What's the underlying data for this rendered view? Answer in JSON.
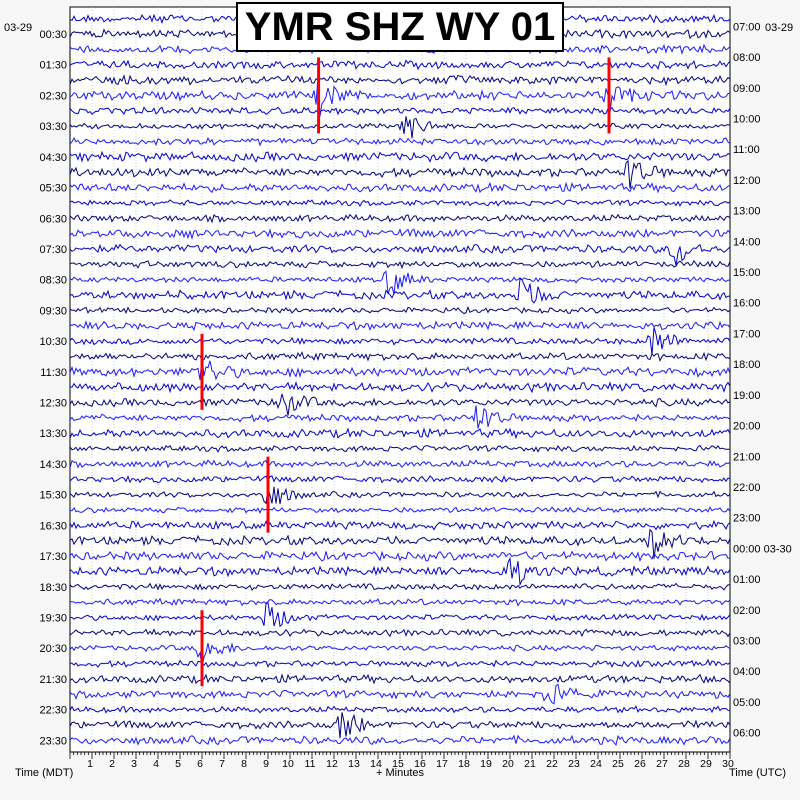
{
  "chart_data": {
    "type": "line",
    "title": "YMR SHZ WY 01",
    "xlabel": "+ Minutes",
    "left_axis_label": "Time (MDT)",
    "right_axis_label": "Time (UTC)",
    "left_date": "03-29",
    "right_date": "03-29",
    "xlim": [
      0,
      30
    ],
    "x_ticks": [
      1,
      2,
      3,
      4,
      5,
      6,
      7,
      8,
      9,
      10,
      11,
      12,
      13,
      14,
      15,
      16,
      17,
      18,
      19,
      20,
      21,
      22,
      23,
      24,
      25,
      26,
      27,
      28,
      29,
      30
    ],
    "left_hour_labels": [
      "00:30",
      "01:30",
      "02:30",
      "03:30",
      "04:30",
      "05:30",
      "06:30",
      "07:30",
      "08:30",
      "09:30",
      "10:30",
      "11:30",
      "12:30",
      "13:30",
      "14:30",
      "15:30",
      "16:30",
      "17:30",
      "18:30",
      "19:30",
      "20:30",
      "21:30",
      "22:30",
      "23:30"
    ],
    "right_hour_labels": [
      "07:00",
      "08:00",
      "09:00",
      "10:00",
      "11:00",
      "12:00",
      "13:00",
      "14:00",
      "15:00",
      "16:00",
      "17:00",
      "18:00",
      "19:00",
      "20:00",
      "21:00",
      "22:00",
      "23:00",
      "00:00 03-30",
      "01:00",
      "02:00",
      "03:00",
      "04:00",
      "05:00",
      "06:00"
    ],
    "trace_colors": [
      "#0000cd",
      "#000080",
      "#1a1aff"
    ],
    "clip_color": "#ff0000",
    "grid": true,
    "trace_count": 48,
    "events": [
      {
        "trace": 5,
        "minute": 11.3,
        "clipped": true
      },
      {
        "trace": 5,
        "minute": 24.5,
        "clipped": true
      },
      {
        "trace": 7,
        "minute": 15.2,
        "clipped": false
      },
      {
        "trace": 10,
        "minute": 25.4,
        "clipped": false
      },
      {
        "trace": 15,
        "minute": 27.5,
        "clipped": false
      },
      {
        "trace": 17,
        "minute": 14.5,
        "clipped": false
      },
      {
        "trace": 18,
        "minute": 20.5,
        "clipped": false
      },
      {
        "trace": 21,
        "minute": 26.5,
        "clipped": false
      },
      {
        "trace": 23,
        "minute": 6.0,
        "clipped": true
      },
      {
        "trace": 25,
        "minute": 9.5,
        "clipped": false
      },
      {
        "trace": 26,
        "minute": 18.5,
        "clipped": false
      },
      {
        "trace": 31,
        "minute": 9.0,
        "clipped": true
      },
      {
        "trace": 34,
        "minute": 26.5,
        "clipped": false
      },
      {
        "trace": 36,
        "minute": 20.0,
        "clipped": false
      },
      {
        "trace": 39,
        "minute": 9.0,
        "clipped": false
      },
      {
        "trace": 41,
        "minute": 6.0,
        "clipped": true
      },
      {
        "trace": 44,
        "minute": 21.5,
        "clipped": false
      },
      {
        "trace": 46,
        "minute": 12.3,
        "clipped": false
      }
    ]
  }
}
